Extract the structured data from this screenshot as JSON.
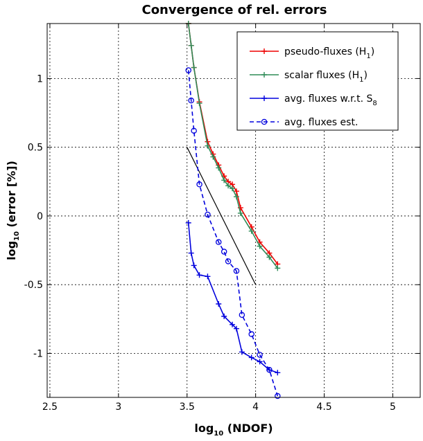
{
  "chart_data": {
    "type": "line",
    "title": "Convergence of rel. errors",
    "xlabel": {
      "prefix": "log",
      "sub": "10",
      "suffix": " (NDOF)"
    },
    "ylabel": {
      "prefix": "log",
      "sub": "10",
      "suffix": " (error [%])"
    },
    "xlim": [
      2.48,
      5.2
    ],
    "ylim": [
      -1.32,
      1.4
    ],
    "xticks": [
      2.5,
      3,
      3.5,
      4,
      4.5,
      5
    ],
    "xtick_labels": [
      "2.5",
      "3",
      "3.5",
      "4",
      "4.5",
      "5"
    ],
    "yticks": [
      -1,
      -0.5,
      0,
      0.5,
      1
    ],
    "ytick_labels": [
      "-1",
      "-0.5",
      "0",
      "0.5",
      "1"
    ],
    "grid": true,
    "legend_position": "top-right",
    "series": [
      {
        "legend": {
          "main": "pseudo-fluxes (H",
          "sub": "1",
          "tail": ")"
        },
        "color": "#ee0000",
        "dash": "solid",
        "marker": "plus",
        "x": [
          3.51,
          3.53,
          3.55,
          3.59,
          3.65,
          3.69,
          3.73,
          3.77,
          3.8,
          3.83,
          3.86,
          3.89,
          3.97,
          4.03,
          4.1,
          4.16
        ],
        "y": [
          1.4,
          1.24,
          1.08,
          0.83,
          0.54,
          0.45,
          0.37,
          0.29,
          0.25,
          0.23,
          0.18,
          0.06,
          -0.08,
          -0.19,
          -0.27,
          -0.35
        ]
      },
      {
        "legend": {
          "main": "scalar fluxes (H",
          "sub": "1",
          "tail": ")"
        },
        "color": "#2e8b57",
        "dash": "solid",
        "marker": "plus",
        "x": [
          3.51,
          3.53,
          3.55,
          3.59,
          3.65,
          3.69,
          3.73,
          3.77,
          3.8,
          3.83,
          3.86,
          3.89,
          3.97,
          4.03,
          4.1,
          4.16
        ],
        "y": [
          1.4,
          1.24,
          1.08,
          0.82,
          0.51,
          0.43,
          0.35,
          0.26,
          0.22,
          0.2,
          0.14,
          0.02,
          -0.11,
          -0.22,
          -0.3,
          -0.38
        ]
      },
      {
        "legend": {
          "main": "avg. fluxes w.r.t. S",
          "sub": "8",
          "tail": ""
        },
        "color": "#0000dd",
        "dash": "solid",
        "marker": "plus",
        "x": [
          3.51,
          3.53,
          3.55,
          3.59,
          3.65,
          3.73,
          3.77,
          3.83,
          3.86,
          3.9,
          3.97,
          4.03,
          4.1,
          4.16
        ],
        "y": [
          -0.05,
          -0.27,
          -0.36,
          -0.43,
          -0.44,
          -0.64,
          -0.73,
          -0.79,
          -0.82,
          -0.99,
          -1.03,
          -1.06,
          -1.12,
          -1.14
        ]
      },
      {
        "legend": {
          "main": "avg. fluxes est.",
          "sub": "",
          "tail": ""
        },
        "color": "#0000dd",
        "dash": "dashed",
        "marker": "circle",
        "x": [
          3.51,
          3.53,
          3.55,
          3.59,
          3.65,
          3.73,
          3.77,
          3.8,
          3.86,
          3.9,
          3.97,
          4.03,
          4.1,
          4.16
        ],
        "y": [
          1.06,
          0.84,
          0.62,
          0.23,
          0.01,
          -0.19,
          -0.26,
          -0.33,
          -0.4,
          -0.72,
          -0.86,
          -1.01,
          -1.12,
          -1.31
        ]
      }
    ],
    "reference_line": {
      "color": "#000000",
      "x": [
        3.5,
        4.0
      ],
      "y": [
        0.5,
        -0.5
      ]
    }
  }
}
